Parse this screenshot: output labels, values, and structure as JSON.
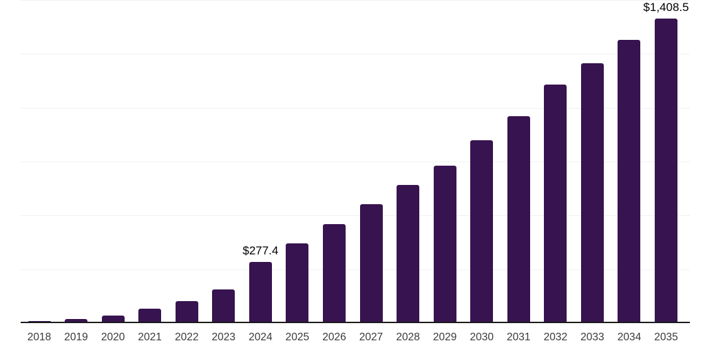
{
  "chart_data": {
    "type": "bar",
    "title": "",
    "xlabel": "",
    "ylabel": "",
    "categories": [
      "2018",
      "2019",
      "2020",
      "2021",
      "2022",
      "2023",
      "2024",
      "2025",
      "2026",
      "2027",
      "2028",
      "2029",
      "2030",
      "2031",
      "2032",
      "2033",
      "2034",
      "2035"
    ],
    "values": [
      3,
      14,
      29,
      60,
      97,
      150,
      277.4,
      365,
      454,
      546,
      636,
      725,
      843,
      955,
      1102,
      1200,
      1310,
      1408.5
    ],
    "data_labels": {
      "2024": "$277.4",
      "2035": "$1,408.5"
    },
    "ylim": [
      0,
      1500
    ],
    "gridline_step": 250,
    "grid": "horizontal",
    "legend": "none",
    "y_axis_labels_visible": false,
    "colors": {
      "bar": "#37134F",
      "axis_line": "#1b1b1b",
      "gridline": "#f1f1f1",
      "tick_label": "#3a3a3a",
      "data_label": "#000000",
      "background": "#ffffff"
    }
  }
}
